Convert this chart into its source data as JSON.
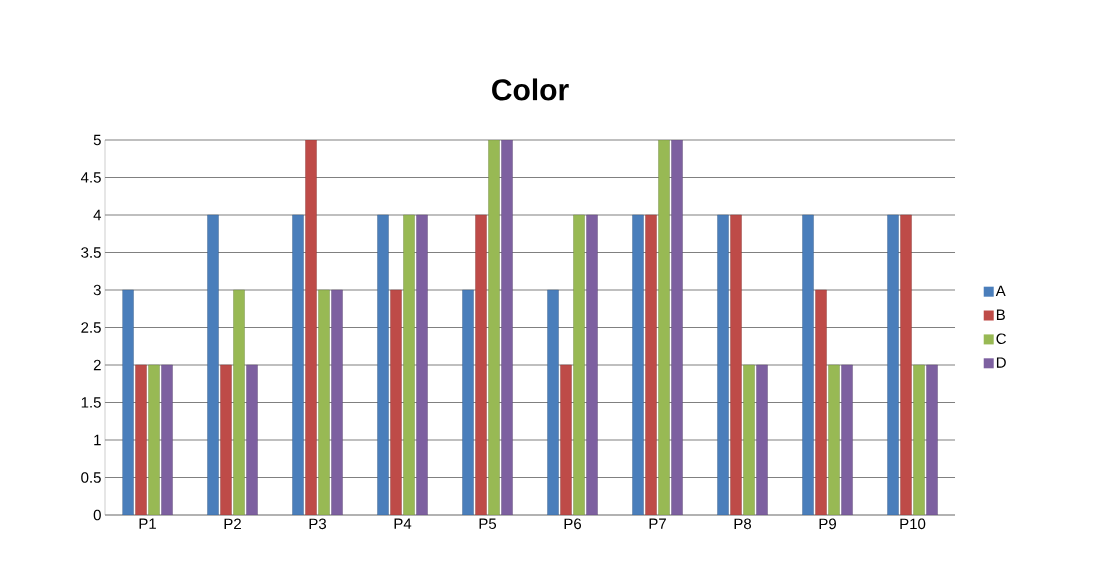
{
  "chart_data": {
    "type": "bar",
    "title": "Color",
    "categories": [
      "P1",
      "P2",
      "P3",
      "P4",
      "P5",
      "P6",
      "P7",
      "P8",
      "P9",
      "P10"
    ],
    "series": [
      {
        "name": "A",
        "color": "#4a7ebb",
        "values": [
          3,
          4,
          4,
          4,
          3,
          3,
          4,
          4,
          4,
          4
        ]
      },
      {
        "name": "B",
        "color": "#be4b48",
        "values": [
          2,
          2,
          5,
          3,
          4,
          2,
          4,
          4,
          3,
          4
        ]
      },
      {
        "name": "C",
        "color": "#98b954",
        "values": [
          2,
          3,
          3,
          4,
          5,
          4,
          5,
          2,
          2,
          2
        ]
      },
      {
        "name": "D",
        "color": "#7d60a0",
        "values": [
          2,
          2,
          3,
          4,
          5,
          4,
          5,
          2,
          2,
          2
        ]
      }
    ],
    "ylim": [
      0,
      5
    ],
    "yticks": [
      0,
      0.5,
      1,
      1.5,
      2,
      2.5,
      3,
      3.5,
      4,
      4.5,
      5
    ],
    "grid": "y",
    "legend": "right"
  }
}
